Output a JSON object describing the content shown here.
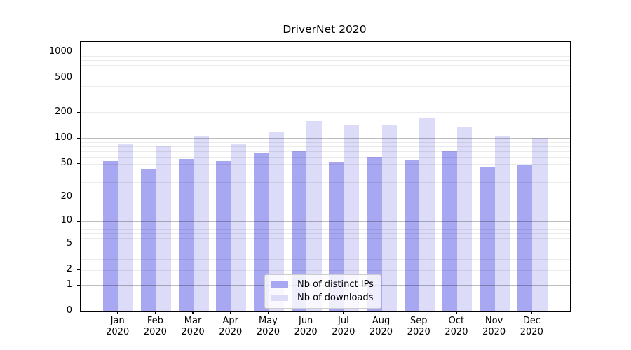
{
  "chart_data": {
    "type": "bar",
    "title": "DriverNet 2020",
    "categories": [
      {
        "month": "Jan",
        "year": "2020"
      },
      {
        "month": "Feb",
        "year": "2020"
      },
      {
        "month": "Mar",
        "year": "2020"
      },
      {
        "month": "Apr",
        "year": "2020"
      },
      {
        "month": "May",
        "year": "2020"
      },
      {
        "month": "Jun",
        "year": "2020"
      },
      {
        "month": "Jul",
        "year": "2020"
      },
      {
        "month": "Aug",
        "year": "2020"
      },
      {
        "month": "Sep",
        "year": "2020"
      },
      {
        "month": "Oct",
        "year": "2020"
      },
      {
        "month": "Nov",
        "year": "2020"
      },
      {
        "month": "Dec",
        "year": "2020"
      }
    ],
    "series": [
      {
        "name": "Nb of distinct IPs",
        "color": "#a8a8f2",
        "values": [
          54,
          44,
          57,
          54,
          67,
          72,
          53,
          61,
          56,
          70,
          46,
          48
        ]
      },
      {
        "name": "Nb of downloads",
        "color": "#dcdcf8",
        "values": [
          86,
          80,
          107,
          86,
          117,
          158,
          142,
          142,
          170,
          135,
          106,
          101
        ]
      }
    ],
    "y_ticks": [
      0,
      1,
      2,
      5,
      10,
      20,
      50,
      100,
      200,
      500,
      1000
    ],
    "ylim": [
      0,
      1000
    ],
    "yscale": "log1p",
    "xlabel": "",
    "ylabel": "",
    "grid": "horizontal major+minor, drawn above bars",
    "legend_position": "lower center"
  },
  "colors": {
    "background": "#ffffff",
    "spine": "#000000",
    "text": "#000000",
    "major_grid": "rgba(0,0,0,0.26)",
    "minor_grid": "rgba(0,0,0,0.08)"
  }
}
